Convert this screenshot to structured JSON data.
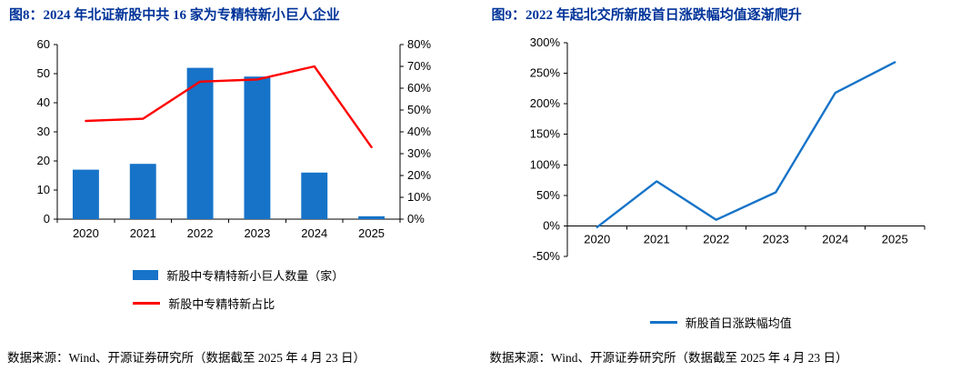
{
  "colors": {
    "title": "#003399",
    "axis": "#000000",
    "bar_blue": "#1673C8",
    "line_red": "#FF0000",
    "line_blue": "#1673C8"
  },
  "chart_data": [
    {
      "type": "combo",
      "title": "图8：2024 年北证新股中共 16 家为专精特新小巨人企业",
      "categories": [
        "2020",
        "2021",
        "2022",
        "2023",
        "2024",
        "2025"
      ],
      "series": [
        {
          "name": "新股中专精特新小巨人数量（家）",
          "type": "bar",
          "axis": "left",
          "color": "#1673C8",
          "values": [
            17,
            19,
            52,
            49,
            16,
            1
          ]
        },
        {
          "name": "新股中专精特新占比",
          "type": "line",
          "axis": "right",
          "color": "#FF0000",
          "values": [
            45,
            46,
            63,
            64,
            70,
            33
          ]
        }
      ],
      "left_axis": {
        "min": 0,
        "max": 60,
        "step": 10,
        "suffix": ""
      },
      "right_axis": {
        "min": 0,
        "max": 80,
        "step": 10,
        "suffix": "%"
      },
      "grid": false,
      "legend_position": "bottom",
      "source": "数据来源：Wind、开源证券研究所（数据截至 2025 年 4 月 23 日）"
    },
    {
      "type": "line",
      "title": "图9：2022 年起北交所新股首日涨跌幅均值逐渐爬升",
      "categories": [
        "2020",
        "2021",
        "2022",
        "2023",
        "2024",
        "2025"
      ],
      "series": [
        {
          "name": "新股首日涨跌幅均值",
          "type": "line",
          "color": "#1673C8",
          "values": [
            -2,
            73,
            10,
            55,
            218,
            268
          ]
        }
      ],
      "y_axis": {
        "min": -50,
        "max": 300,
        "step": 50,
        "suffix": "%"
      },
      "grid": false,
      "legend_position": "bottom",
      "source": "数据来源：Wind、开源证券研究所（数据截至 2025 年 4 月 23 日）"
    }
  ]
}
